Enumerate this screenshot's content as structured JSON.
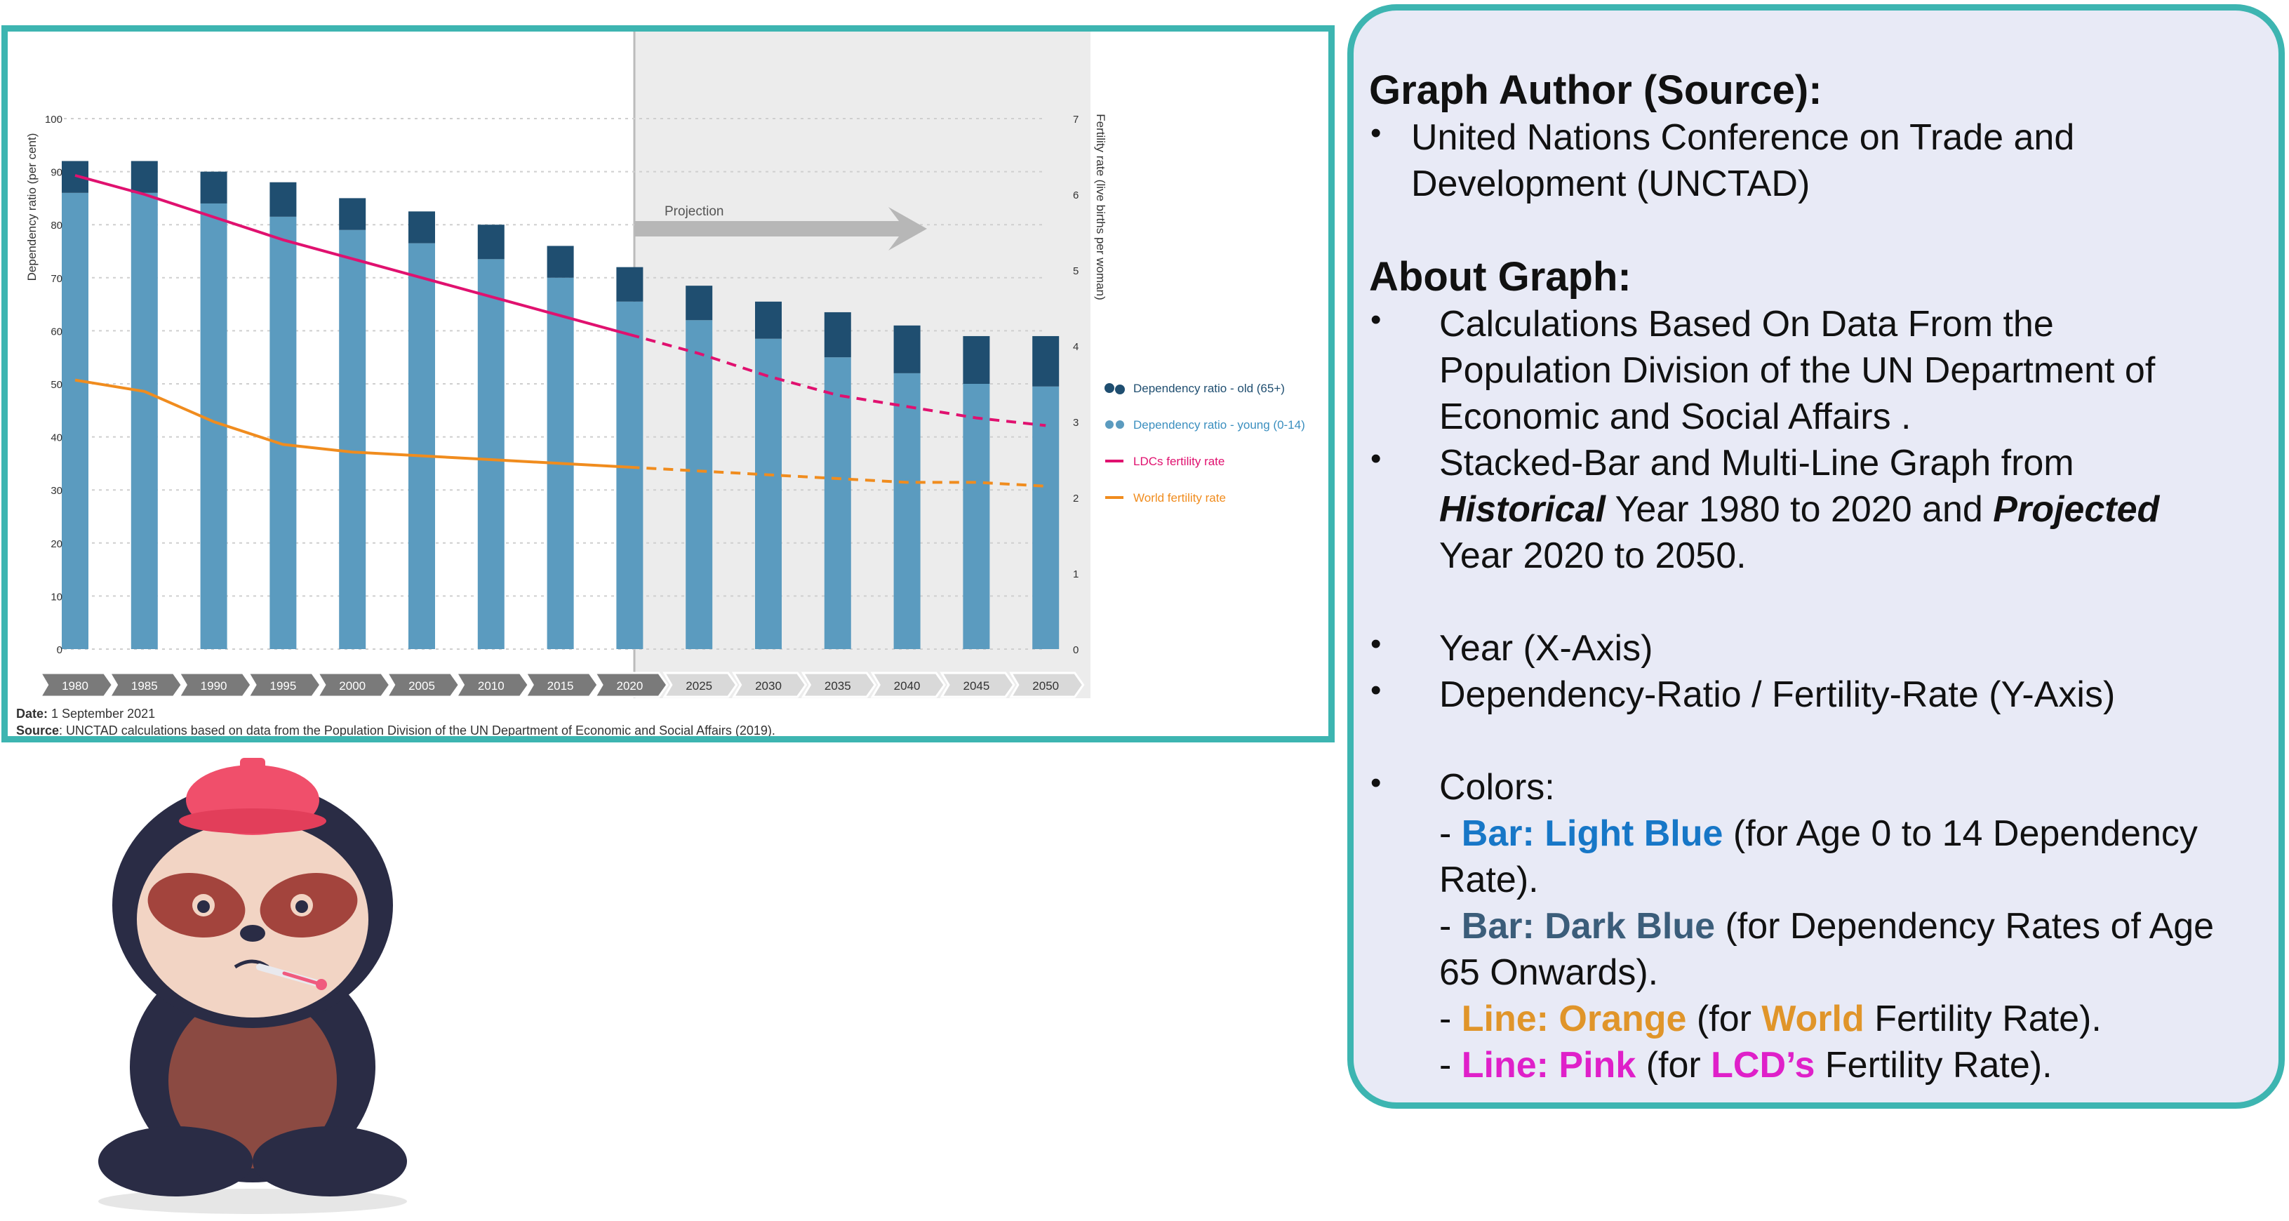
{
  "chart_data": {
    "type": "bar+line",
    "categories": [
      "1980",
      "1985",
      "1990",
      "1995",
      "2000",
      "2005",
      "2010",
      "2015",
      "2020",
      "2025",
      "2030",
      "2035",
      "2040",
      "2045",
      "2050"
    ],
    "series": [
      {
        "name": "Dependency ratio - young (0-14)",
        "values": [
          86,
          86,
          84,
          81.5,
          79,
          76.5,
          73.5,
          70,
          65.5,
          62,
          58.5,
          55,
          52,
          50,
          49.5
        ],
        "color": "#5b9bbf"
      },
      {
        "name": "Dependency ratio - old (65+)",
        "values": [
          6,
          6,
          6,
          6.5,
          6,
          6,
          6.5,
          6,
          6.5,
          6.5,
          7,
          8.5,
          9,
          9,
          9.5
        ],
        "color": "#1f4e70"
      },
      {
        "name": "LDCs fertility rate",
        "values": [
          6.25,
          6.0,
          5.7,
          5.4,
          5.15,
          4.9,
          4.65,
          4.4,
          4.15,
          3.9,
          3.6,
          3.35,
          3.2,
          3.05,
          2.95
        ],
        "color": "#e0116f",
        "axis": "right"
      },
      {
        "name": "World fertility rate",
        "values": [
          3.55,
          3.4,
          3.0,
          2.7,
          2.6,
          2.55,
          2.5,
          2.45,
          2.4,
          2.35,
          2.3,
          2.25,
          2.2,
          2.2,
          2.15
        ],
        "color": "#f08c1e",
        "axis": "right"
      }
    ],
    "ylabel": "Dependency ratio (per cent)",
    "ylabel_right": "Fertility rate (live births per woman)",
    "y_ticks": [
      "100",
      "90",
      "80",
      "70",
      "60",
      "50",
      "40",
      "30",
      "20",
      "10",
      "0"
    ],
    "y_right_ticks": [
      "7",
      "6",
      "5",
      "4",
      "3",
      "2",
      "1",
      "0"
    ],
    "ylim": [
      0,
      100
    ],
    "ylim_right": [
      0,
      7
    ],
    "projection_label": "Projection",
    "projection_from": "2020",
    "legend": [
      "Dependency ratio - old (65+)",
      "Dependency ratio - young (0-14)",
      "LDCs fertility rate",
      "World fertility rate"
    ],
    "date_label": "Date:",
    "date_value": " 1 September 2021",
    "source_label": "Source",
    "source_value": ": UNCTAD calculations based on data from the Population Division of the UN Department of Economic and Social Affairs (2019)."
  },
  "info": {
    "heading_source": "Graph Author (Source):",
    "source_line1": "United Nations Conference on Trade and",
    "source_line2": "Development (UNCTAD)",
    "heading_about": "About Graph:",
    "b1_l1": "Calculations Based On Data From the",
    "b1_l2": "Population Division of the UN Department of",
    "b1_l3": "Economic and Social Affairs .",
    "b2_l1": "Stacked-Bar and Multi-Line Graph from",
    "b2_historical": "Historical",
    "b2_mid": " Year 1980 to 2020 and ",
    "b2_projected": "Projected",
    "b2_l3": "Year 2020 to 2050.",
    "b3": "Year (X-Axis)",
    "b4": "Dependency-Ratio / Fertility-Rate (Y-Axis)",
    "b5": "Colors:",
    "c1_dash": "- ",
    "c1_key": "Bar: Light Blue",
    "c1_rest": " (for Age 0 to 14 Dependency",
    "c1_l2": "Rate).",
    "c2_dash": "- ",
    "c2_key": "Bar: Dark Blue",
    "c2_rest": " (for Dependency Rates of Age",
    "c2_l2": "65 Onwards).",
    "c3_dash": "- ",
    "c3_key": "Line: Orange",
    "c3_mid": " (for ",
    "c3_key2": "World",
    "c3_rest": " Fertility Rate).",
    "c4_dash": "- ",
    "c4_key": "Line: Pink",
    "c4_mid": " (for ",
    "c4_key2": "LCD’s",
    "c4_rest": " Fertility Rate).",
    "bullet": "•"
  }
}
